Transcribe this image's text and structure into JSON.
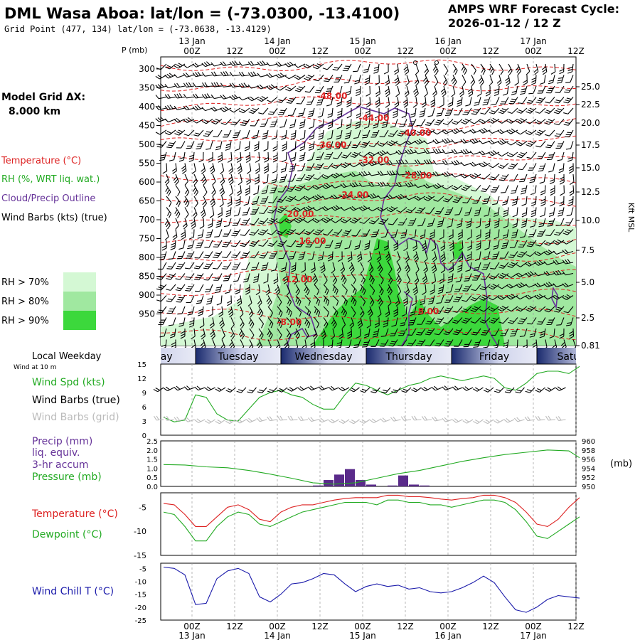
{
  "title": "DML Wasa Aboa:  lat/lon = (-73.0300, -13.4100)",
  "grid_point": "Grid Point (477, 134) lat/lon = (-73.0638, -13.4129)",
  "cycle_title": "AMPS WRF Forecast Cycle:",
  "cycle_value": "2026-01-12 / 12  Z",
  "model_grid_label": "Model Grid ΔX:",
  "model_grid_value": "8.000 km",
  "legend": {
    "temperature": "Temperature (°C)",
    "rh": "RH (%, WRT liq. wat.)",
    "cloud": "Cloud/Precip Outline",
    "wind": "Wind Barbs (kts) (true)",
    "rh70": "RH > 70%",
    "rh80": "RH > 80%",
    "rh90": "RH > 90%",
    "rh70_color": "#d4f8d4",
    "rh80_color": "#a0e8a0",
    "rh90_color": "#3cd83c"
  },
  "time_axis": {
    "top_dates": [
      "13 Jan",
      "14 Jan",
      "15 Jan",
      "16 Jan",
      "17 Jan"
    ],
    "hours": [
      "00Z",
      "12Z",
      "00Z",
      "12Z",
      "00Z",
      "12Z",
      "00Z",
      "12Z",
      "00Z",
      "12Z"
    ],
    "bottom_dates": [
      "13 Jan",
      "14 Jan",
      "15 Jan",
      "16 Jan",
      "17 Jan"
    ]
  },
  "pressure_label": "P (mb)",
  "pressure_levels": [
    "300",
    "350",
    "400",
    "450",
    "500",
    "550",
    "600",
    "650",
    "700",
    "750",
    "800",
    "850",
    "900",
    "950"
  ],
  "kft_levels": [
    "25.0",
    "22.5",
    "20.0",
    "17.5",
    "15.0",
    "12.5",
    "10.0",
    "7.5",
    "5.0",
    "2.5",
    "0.81"
  ],
  "kft_label": "Kft MSL",
  "weekday_label": "Local Weekday",
  "weekdays": [
    "Monday",
    "Tuesday",
    "Wednesday",
    "Thursday",
    "Friday",
    "Saturday"
  ],
  "temperature_contours": [
    "-48.00",
    "-44.00",
    "-40.00",
    "-36.00",
    "-32.00",
    "-28.00",
    "-24.00",
    "-20.00",
    "-16.00",
    "-12.00",
    "-8.00",
    "-8.00"
  ],
  "wind_panel": {
    "subtitle": "Wind at 10 m",
    "spd_label": "Wind Spd (kts)",
    "barbs_true": "Wind Barbs (true)",
    "barbs_grid": "Wind Barbs (grid)",
    "yticks": [
      "15",
      "12",
      "9",
      "6",
      "3",
      "0"
    ]
  },
  "precip_panel": {
    "precip_label": "Precip (mm)",
    "liq_label": "liq. equiv.",
    "accum_label": "3-hr accum",
    "pressure_label": "Pressure (mb)",
    "mb_label": "(mb)",
    "left_ticks": [
      "2.5",
      "2.0",
      "1.5",
      "1.0",
      "0.5",
      "0.0"
    ],
    "right_ticks": [
      "960",
      "958",
      "956",
      "954",
      "952",
      "950"
    ]
  },
  "temp_panel": {
    "temp_label": "Temperature (°C)",
    "dew_label": "Dewpoint (°C)",
    "yticks": [
      "-5",
      "-10",
      "-15"
    ]
  },
  "chill_panel": {
    "label": "Wind Chill T (°C)",
    "yticks": [
      "-5",
      "-10",
      "-15",
      "-20",
      "-25"
    ]
  },
  "chart_data": [
    {
      "type": "line",
      "name": "wind_speed",
      "x_hours": [
        0,
        3,
        6,
        9,
        12,
        15,
        18,
        21,
        24,
        27,
        30,
        33,
        36,
        39,
        42,
        45,
        48,
        51,
        54,
        57,
        60,
        63,
        66,
        69,
        72,
        75,
        78,
        81,
        84,
        87,
        90,
        93,
        96,
        99,
        102,
        105,
        108,
        111,
        114,
        117
      ],
      "values": [
        3.8,
        2.8,
        3.2,
        8.5,
        8.0,
        4.5,
        3.2,
        3.0,
        5.5,
        8.0,
        9.0,
        9.5,
        8.5,
        8.0,
        6.5,
        5.5,
        5.5,
        8.5,
        11.0,
        10.5,
        9.5,
        8.5,
        9.5,
        10.5,
        11.0,
        12.0,
        12.5,
        12.0,
        11.5,
        12.0,
        12.5,
        12.0,
        10.0,
        9.5,
        11.0,
        13.0,
        13.5,
        13.5,
        13.0,
        14.5
      ],
      "ylim": [
        0,
        15
      ]
    },
    {
      "type": "bar",
      "name": "precip_3hr",
      "x_hours": [
        42,
        45,
        48,
        51,
        54,
        57,
        63,
        66,
        69,
        72
      ],
      "values": [
        0.05,
        0.35,
        0.65,
        0.95,
        0.35,
        0.1,
        0.05,
        0.6,
        0.1,
        0.05
      ],
      "ylim": [
        0,
        2.5
      ]
    },
    {
      "type": "line",
      "name": "pressure",
      "x_hours": [
        0,
        6,
        12,
        18,
        24,
        30,
        36,
        42,
        48,
        54,
        60,
        66,
        72,
        78,
        84,
        90,
        96,
        102,
        108,
        114,
        117
      ],
      "values": [
        954.8,
        954.7,
        954.3,
        954.1,
        953.5,
        952.7,
        951.8,
        950.8,
        950.5,
        950.8,
        951.8,
        952.8,
        953.5,
        954.5,
        955.5,
        956.3,
        957.0,
        957.5,
        958.0,
        957.8,
        956.3
      ],
      "ylim": [
        950,
        960
      ]
    },
    {
      "type": "line",
      "name": "temperature",
      "x_hours": [
        0,
        3,
        6,
        9,
        12,
        15,
        18,
        21,
        24,
        27,
        30,
        33,
        36,
        39,
        42,
        45,
        48,
        51,
        54,
        57,
        60,
        63,
        66,
        69,
        72,
        75,
        78,
        81,
        84,
        87,
        90,
        93,
        96,
        99,
        102,
        105,
        108,
        111,
        114,
        117
      ],
      "values": [
        -4.2,
        -4.5,
        -6.5,
        -9.0,
        -9.0,
        -7.0,
        -5.0,
        -4.5,
        -5.5,
        -7.5,
        -8.0,
        -6.0,
        -5.0,
        -4.5,
        -4.5,
        -4.0,
        -3.5,
        -3.2,
        -3.0,
        -3.0,
        -3.0,
        -2.5,
        -2.5,
        -2.8,
        -2.8,
        -3.0,
        -3.3,
        -3.5,
        -3.2,
        -3.0,
        -2.5,
        -2.5,
        -3.0,
        -4.0,
        -6.0,
        -8.5,
        -9.0,
        -7.5,
        -5.0,
        -3.0
      ],
      "ylim": [
        -15,
        -2
      ]
    },
    {
      "type": "line",
      "name": "dewpoint",
      "x_hours": [
        0,
        3,
        6,
        9,
        12,
        15,
        18,
        21,
        24,
        27,
        30,
        33,
        36,
        39,
        42,
        45,
        48,
        51,
        54,
        57,
        60,
        63,
        66,
        69,
        72,
        75,
        78,
        81,
        84,
        87,
        90,
        93,
        96,
        99,
        102,
        105,
        108,
        111,
        114,
        117
      ],
      "values": [
        -6.0,
        -6.5,
        -9.0,
        -12.0,
        -12.0,
        -9.0,
        -7.0,
        -6.0,
        -6.5,
        -8.5,
        -9.0,
        -8.0,
        -7.0,
        -6.0,
        -5.5,
        -5.0,
        -4.5,
        -4.0,
        -4.0,
        -4.0,
        -4.5,
        -3.5,
        -3.5,
        -4.0,
        -4.0,
        -4.5,
        -4.5,
        -5.0,
        -4.5,
        -4.0,
        -3.5,
        -3.5,
        -4.0,
        -5.5,
        -8.0,
        -11.0,
        -11.5,
        -10.0,
        -8.5,
        -7.0
      ],
      "ylim": [
        -15,
        -2
      ]
    },
    {
      "type": "line",
      "name": "wind_chill",
      "x_hours": [
        0,
        3,
        6,
        9,
        12,
        15,
        18,
        21,
        24,
        27,
        30,
        33,
        36,
        39,
        42,
        45,
        48,
        51,
        54,
        57,
        60,
        63,
        66,
        69,
        72,
        75,
        78,
        81,
        84,
        87,
        90,
        93,
        96,
        99,
        102,
        105,
        108,
        111,
        114,
        117
      ],
      "values": [
        -4.5,
        -5.0,
        -7.5,
        -19.0,
        -18.5,
        -9.0,
        -6.0,
        -5.0,
        -7.0,
        -16.0,
        -18.0,
        -15.0,
        -11.0,
        -10.5,
        -9.0,
        -7.0,
        -7.5,
        -11.0,
        -14.0,
        -12.0,
        -11.0,
        -12.0,
        -11.5,
        -13.0,
        -12.5,
        -14.0,
        -14.5,
        -14.0,
        -12.5,
        -10.5,
        -8.0,
        -10.5,
        -16.0,
        -21.0,
        -22.0,
        -20.0,
        -17.0,
        -15.5,
        -16.0,
        -16.5
      ],
      "ylim": [
        -25,
        -3
      ]
    }
  ]
}
